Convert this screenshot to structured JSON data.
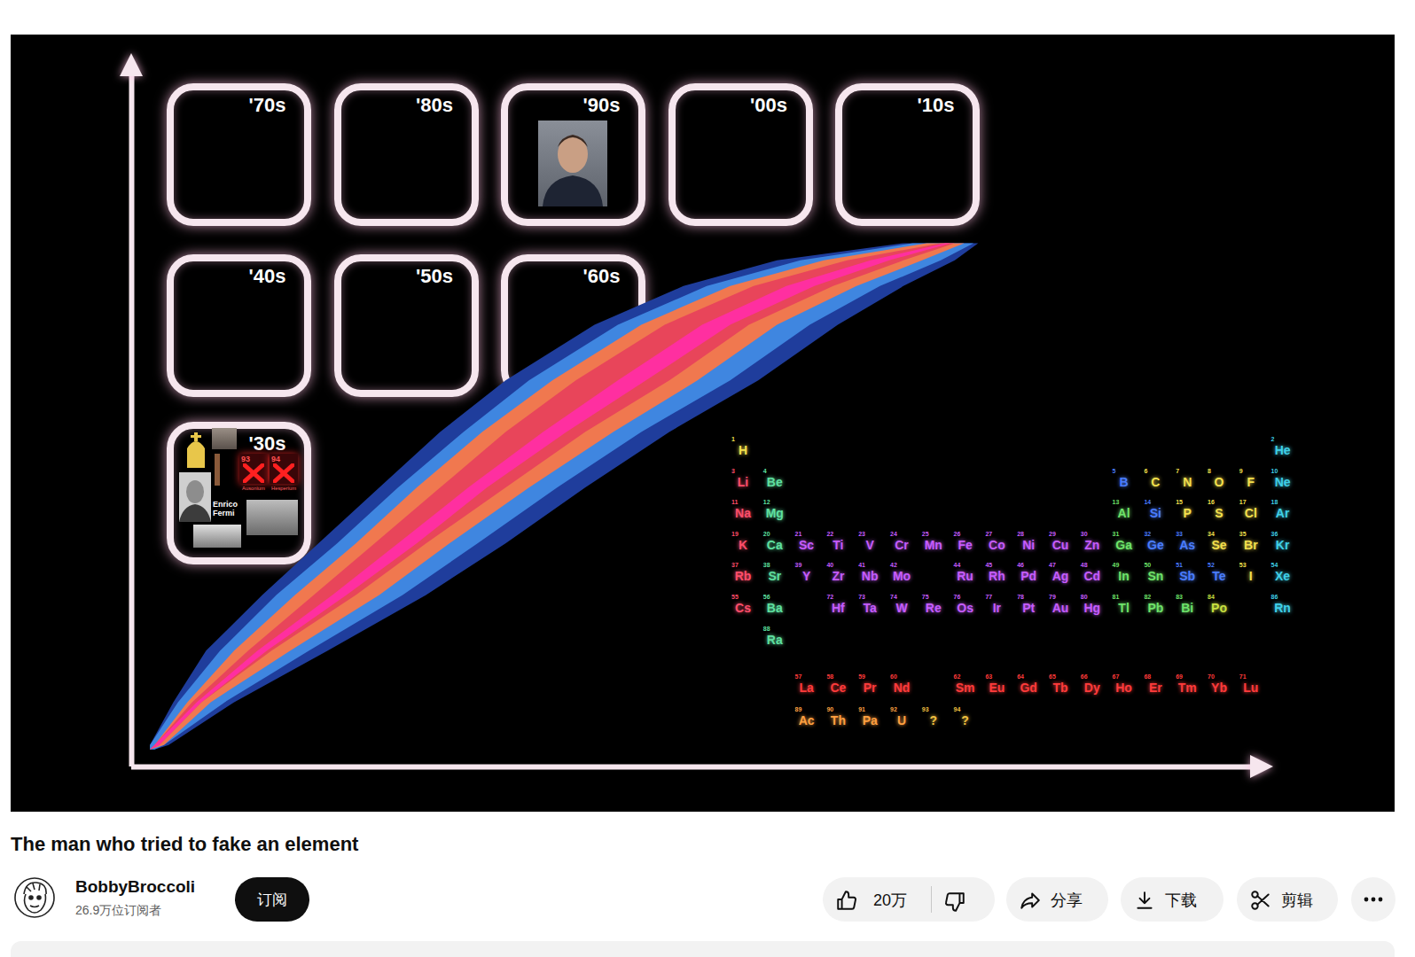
{
  "thumbnail": {
    "decades": [
      "'30s",
      "'40s",
      "'50s",
      "'60s",
      "'70s",
      "'80s",
      "'90s",
      "'00s",
      "'10s"
    ],
    "box_30s": {
      "caption": "Enrico Fermi",
      "elements": [
        {
          "number": 93,
          "name": "Ausonium"
        },
        {
          "number": 94,
          "name": "Hesperium"
        }
      ]
    },
    "periodic_table": {
      "elements": [
        {
          "number": 1,
          "symbol": "H",
          "color": "#f4e04d"
        },
        {
          "number": 2,
          "symbol": "He",
          "color": "#3fd0e8"
        },
        {
          "number": 3,
          "symbol": "Li",
          "color": "#ff4d6a"
        },
        {
          "number": 4,
          "symbol": "Be",
          "color": "#5ee0a0"
        },
        {
          "number": 5,
          "symbol": "B",
          "color": "#4a7dff"
        },
        {
          "number": 6,
          "symbol": "C",
          "color": "#f4e04d"
        },
        {
          "number": 7,
          "symbol": "N",
          "color": "#f4e04d"
        },
        {
          "number": 8,
          "symbol": "O",
          "color": "#f4e04d"
        },
        {
          "number": 9,
          "symbol": "F",
          "color": "#f4e04d"
        },
        {
          "number": 10,
          "symbol": "Ne",
          "color": "#3fd0e8"
        },
        {
          "number": 11,
          "symbol": "Na",
          "color": "#ff4d6a"
        },
        {
          "number": 12,
          "symbol": "Mg",
          "color": "#5ee0a0"
        },
        {
          "number": 13,
          "symbol": "Al",
          "color": "#6ee36a"
        },
        {
          "number": 14,
          "symbol": "Si",
          "color": "#4a7dff"
        },
        {
          "number": 15,
          "symbol": "P",
          "color": "#f4e04d"
        },
        {
          "number": 16,
          "symbol": "S",
          "color": "#f4e04d"
        },
        {
          "number": 17,
          "symbol": "Cl",
          "color": "#f4e04d"
        },
        {
          "number": 18,
          "symbol": "Ar",
          "color": "#3fd0e8"
        },
        {
          "number": 19,
          "symbol": "K",
          "color": "#ff4d6a"
        },
        {
          "number": 20,
          "symbol": "Ca",
          "color": "#5ee0a0"
        },
        {
          "number": 21,
          "symbol": "Sc",
          "color": "#c65cff"
        },
        {
          "number": 22,
          "symbol": "Ti",
          "color": "#c65cff"
        },
        {
          "number": 23,
          "symbol": "V",
          "color": "#c65cff"
        },
        {
          "number": 24,
          "symbol": "Cr",
          "color": "#c65cff"
        },
        {
          "number": 25,
          "symbol": "Mn",
          "color": "#c65cff"
        },
        {
          "number": 26,
          "symbol": "Fe",
          "color": "#c65cff"
        },
        {
          "number": 27,
          "symbol": "Co",
          "color": "#c65cff"
        },
        {
          "number": 28,
          "symbol": "Ni",
          "color": "#c65cff"
        },
        {
          "number": 29,
          "symbol": "Cu",
          "color": "#c65cff"
        },
        {
          "number": 30,
          "symbol": "Zn",
          "color": "#c65cff"
        },
        {
          "number": 31,
          "symbol": "Ga",
          "color": "#6ee36a"
        },
        {
          "number": 32,
          "symbol": "Ge",
          "color": "#4a7dff"
        },
        {
          "number": 33,
          "symbol": "As",
          "color": "#4a7dff"
        },
        {
          "number": 34,
          "symbol": "Se",
          "color": "#f4e04d"
        },
        {
          "number": 35,
          "symbol": "Br",
          "color": "#f4e04d"
        },
        {
          "number": 36,
          "symbol": "Kr",
          "color": "#3fd0e8"
        },
        {
          "number": 37,
          "symbol": "Rb",
          "color": "#ff4d6a"
        },
        {
          "number": 38,
          "symbol": "Sr",
          "color": "#5ee0a0"
        },
        {
          "number": 39,
          "symbol": "Y",
          "color": "#c65cff"
        },
        {
          "number": 40,
          "symbol": "Zr",
          "color": "#c65cff"
        },
        {
          "number": 41,
          "symbol": "Nb",
          "color": "#c65cff"
        },
        {
          "number": 42,
          "symbol": "Mo",
          "color": "#c65cff"
        },
        {
          "number": 44,
          "symbol": "Ru",
          "color": "#c65cff"
        },
        {
          "number": 45,
          "symbol": "Rh",
          "color": "#c65cff"
        },
        {
          "number": 46,
          "symbol": "Pd",
          "color": "#c65cff"
        },
        {
          "number": 47,
          "symbol": "Ag",
          "color": "#c65cff"
        },
        {
          "number": 48,
          "symbol": "Cd",
          "color": "#c65cff"
        },
        {
          "number": 49,
          "symbol": "In",
          "color": "#6ee36a"
        },
        {
          "number": 50,
          "symbol": "Sn",
          "color": "#6ee36a"
        },
        {
          "number": 51,
          "symbol": "Sb",
          "color": "#4a7dff"
        },
        {
          "number": 52,
          "symbol": "Te",
          "color": "#4a7dff"
        },
        {
          "number": 53,
          "symbol": "I",
          "color": "#f4e04d"
        },
        {
          "number": 54,
          "symbol": "Xe",
          "color": "#3fd0e8"
        },
        {
          "number": 55,
          "symbol": "Cs",
          "color": "#ff4d6a"
        },
        {
          "number": 56,
          "symbol": "Ba",
          "color": "#5ee0a0"
        },
        {
          "number": 57,
          "symbol": "La",
          "color": "#ff3b3b"
        },
        {
          "number": 58,
          "symbol": "Ce",
          "color": "#ff3b3b"
        },
        {
          "number": 59,
          "symbol": "Pr",
          "color": "#ff3b3b"
        },
        {
          "number": 60,
          "symbol": "Nd",
          "color": "#ff3b3b"
        },
        {
          "number": 62,
          "symbol": "Sm",
          "color": "#ff3b3b"
        },
        {
          "number": 63,
          "symbol": "Eu",
          "color": "#ff3b3b"
        },
        {
          "number": 64,
          "symbol": "Gd",
          "color": "#ff3b3b"
        },
        {
          "number": 65,
          "symbol": "Tb",
          "color": "#ff3b3b"
        },
        {
          "number": 66,
          "symbol": "Dy",
          "color": "#ff3b3b"
        },
        {
          "number": 67,
          "symbol": "Ho",
          "color": "#ff3b3b"
        },
        {
          "number": 68,
          "symbol": "Er",
          "color": "#ff3b3b"
        },
        {
          "number": 69,
          "symbol": "Tm",
          "color": "#ff3b3b"
        },
        {
          "number": 70,
          "symbol": "Yb",
          "color": "#ff3b3b"
        },
        {
          "number": 71,
          "symbol": "Lu",
          "color": "#ff3b3b"
        },
        {
          "number": 72,
          "symbol": "Hf",
          "color": "#c65cff"
        },
        {
          "number": 73,
          "symbol": "Ta",
          "color": "#c65cff"
        },
        {
          "number": 74,
          "symbol": "W",
          "color": "#c65cff"
        },
        {
          "number": 75,
          "symbol": "Re",
          "color": "#c65cff"
        },
        {
          "number": 76,
          "symbol": "Os",
          "color": "#c65cff"
        },
        {
          "number": 77,
          "symbol": "Ir",
          "color": "#c65cff"
        },
        {
          "number": 78,
          "symbol": "Pt",
          "color": "#c65cff"
        },
        {
          "number": 79,
          "symbol": "Au",
          "color": "#c65cff"
        },
        {
          "number": 80,
          "symbol": "Hg",
          "color": "#c65cff"
        },
        {
          "number": 81,
          "symbol": "Tl",
          "color": "#6ee36a"
        },
        {
          "number": 82,
          "symbol": "Pb",
          "color": "#6ee36a"
        },
        {
          "number": 83,
          "symbol": "Bi",
          "color": "#6ee36a"
        },
        {
          "number": 84,
          "symbol": "Po",
          "color": "#c8e040"
        },
        {
          "number": 86,
          "symbol": "Rn",
          "color": "#3fd0e8"
        },
        {
          "number": 88,
          "symbol": "Ra",
          "color": "#5ee0a0"
        },
        {
          "number": 89,
          "symbol": "Ac",
          "color": "#ffa040"
        },
        {
          "number": 90,
          "symbol": "Th",
          "color": "#ffa040"
        },
        {
          "number": 91,
          "symbol": "Pa",
          "color": "#ffa040"
        },
        {
          "number": 92,
          "symbol": "U",
          "color": "#ffa040"
        },
        {
          "number": 93,
          "symbol": "?",
          "color": "#f0c040"
        },
        {
          "number": 94,
          "symbol": "?",
          "color": "#f0c040"
        }
      ]
    }
  },
  "chart_data": {
    "type": "area",
    "xlim": [
      -4,
      237
    ],
    "ylim": [
      -4,
      159
    ],
    "tick_labels": false,
    "series": [
      {
        "color": "#1f3d9c",
        "z": [
          0,
          1,
          11,
          23,
          36,
          48,
          61,
          74,
          86,
          99,
          108,
          114,
          118
        ],
        "n_min": [
          0,
          0,
          5,
          12,
          24,
          36,
          49,
          62,
          76,
          95,
          114,
          134,
          161
        ],
        "n_max": [
          1,
          4,
          18,
          38,
          59,
          76,
          93,
          111,
          130,
          147,
          161,
          172,
          177
        ]
      },
      {
        "color": "#3f86e0",
        "z": [
          0,
          1,
          11,
          23,
          36,
          48,
          61,
          74,
          86,
          99,
          108,
          114,
          118
        ],
        "n_min": [
          0,
          0,
          6,
          15,
          27,
          40,
          53,
          67,
          81,
          100,
          119,
          139,
          163
        ],
        "n_max": [
          1,
          3,
          16,
          34,
          54,
          70,
          87,
          105,
          124,
          141,
          156,
          169,
          176
        ]
      },
      {
        "color": "#f0784f",
        "z": [
          0,
          1,
          11,
          23,
          36,
          48,
          61,
          74,
          86,
          99,
          108,
          114,
          118
        ],
        "n_min": [
          0,
          1,
          8,
          18,
          31,
          44,
          57,
          71,
          86,
          105,
          124,
          144,
          166
        ],
        "n_max": [
          0,
          3,
          13,
          30,
          49,
          64,
          81,
          99,
          117,
          134,
          151,
          165,
          174
        ]
      },
      {
        "color": "#e8455a",
        "z": [
          0,
          1,
          11,
          23,
          36,
          48,
          61,
          74,
          86,
          99,
          108,
          114,
          118
        ],
        "n_min": [
          0,
          1,
          9,
          21,
          35,
          48,
          62,
          76,
          91,
          110,
          129,
          149,
          169
        ],
        "n_max": [
          0,
          2,
          11,
          26,
          44,
          59,
          76,
          93,
          111,
          128,
          146,
          161,
          172
        ]
      },
      {
        "color": "#ff2fa0",
        "z": [
          0,
          1,
          11,
          23,
          36,
          48,
          61,
          74,
          86,
          99,
          108,
          114,
          118
        ],
        "n_min": [
          0,
          1,
          10,
          23,
          39,
          53,
          68,
          84,
          100,
          118,
          136,
          154,
          170
        ],
        "n_max": [
          0,
          2,
          11,
          25,
          42,
          57,
          72,
          89,
          106,
          124,
          142,
          158,
          171
        ]
      }
    ]
  },
  "video": {
    "title": "The man who tried to fake an element",
    "channel": "BobbyBroccoli",
    "subscribers": "26.9万位订阅者",
    "subscribe": "订阅",
    "likes": "20万",
    "actions": [
      "分享",
      "下载",
      "剪辑"
    ]
  }
}
